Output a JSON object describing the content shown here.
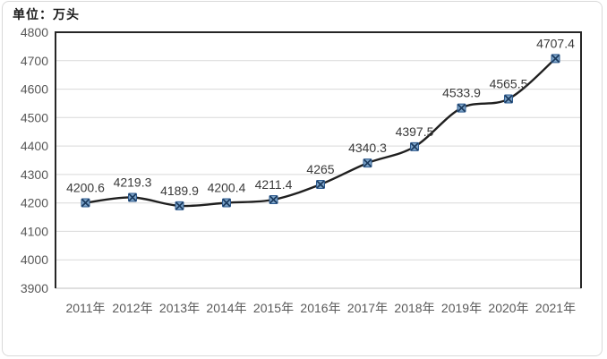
{
  "chart_data": {
    "type": "line",
    "unit_label": "单位：万头",
    "categories": [
      "2011年",
      "2012年",
      "2013年",
      "2014年",
      "2015年",
      "2016年",
      "2017年",
      "2018年",
      "2019年",
      "2020年",
      "2021年"
    ],
    "values": [
      4200.6,
      4219.3,
      4189.9,
      4200.4,
      4211.4,
      4265,
      4340.3,
      4397.5,
      4533.9,
      4565.5,
      4707.4
    ],
    "data_labels": [
      "4200.6",
      "4219.3",
      "4189.9",
      "4200.4",
      "4211.4",
      "4265",
      "4340.3",
      "4397.5",
      "4533.9",
      "4565.5",
      "4707.4"
    ],
    "ylim": [
      3900,
      4800
    ],
    "ytick_interval": 100,
    "yticks": [
      "3900",
      "4000",
      "4100",
      "4200",
      "4300",
      "4400",
      "4500",
      "4600",
      "4700",
      "4800"
    ],
    "grid": true,
    "legend": "none",
    "smooth_line": true,
    "marker": "x-square",
    "colors": {
      "line": "#1f1f1f",
      "marker_fill": "#7da4c9",
      "marker_border": "#2e5b8f",
      "marker_x": "#1b3a5e",
      "gridline": "#d9d9d9",
      "bottom_gridline": "#bfbfbf",
      "plot_border": "#262626",
      "tick_label": "#595959",
      "data_label": "#3a3a3a",
      "chart_border": "#d9d9d9",
      "background": "#ffffff"
    }
  }
}
